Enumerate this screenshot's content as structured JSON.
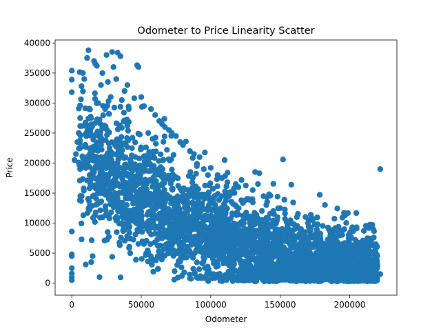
{
  "chart_data": {
    "type": "scatter",
    "title": "Odometer to Price Linearity Scatter",
    "xlabel": "Odometer",
    "ylabel": "Price",
    "xlim": [
      -12000,
      234000
    ],
    "ylim": [
      -2000,
      40500
    ],
    "xticks": [
      0,
      50000,
      100000,
      150000,
      200000
    ],
    "yticks": [
      0,
      5000,
      10000,
      15000,
      20000,
      25000,
      30000,
      35000,
      40000
    ],
    "marker_color": "#1f77b4",
    "grid": false,
    "legend": "none",
    "series": [
      {
        "points": [
          [
            0,
            500
          ],
          [
            0,
            1000
          ],
          [
            0,
            1600
          ],
          [
            0,
            2500
          ],
          [
            0,
            4500
          ],
          [
            0,
            4800
          ],
          [
            0,
            8600
          ],
          [
            0,
            31800
          ],
          [
            0,
            33900
          ],
          [
            0,
            35400
          ],
          [
            2000,
            20500
          ],
          [
            3000,
            21500
          ],
          [
            4000,
            23500
          ],
          [
            5000,
            25000
          ],
          [
            6000,
            27500
          ],
          [
            6000,
            19000
          ],
          [
            7000,
            32800
          ],
          [
            8000,
            35000
          ],
          [
            9000,
            34000
          ],
          [
            10000,
            3100
          ],
          [
            11000,
            37500
          ],
          [
            12000,
            38800
          ],
          [
            13000,
            13000
          ],
          [
            14000,
            3500
          ],
          [
            15000,
            4500
          ],
          [
            16000,
            37000
          ],
          [
            17000,
            36500
          ],
          [
            18000,
            36200
          ],
          [
            19000,
            30000
          ],
          [
            20000,
            1000
          ],
          [
            21000,
            33000
          ],
          [
            22000,
            35000
          ],
          [
            24000,
            29000
          ],
          [
            25000,
            38000
          ],
          [
            26000,
            33500
          ],
          [
            28000,
            31000
          ],
          [
            29000,
            38500
          ],
          [
            30000,
            36000
          ],
          [
            32000,
            34000
          ],
          [
            33000,
            38400
          ],
          [
            35000,
            37800
          ],
          [
            36000,
            30500
          ],
          [
            38000,
            32000
          ],
          [
            40000,
            33000
          ],
          [
            41000,
            29000
          ],
          [
            42000,
            5000
          ],
          [
            45000,
            30800
          ],
          [
            47000,
            36300
          ],
          [
            48000,
            36000
          ],
          [
            50000,
            31000
          ],
          [
            52000,
            29500
          ],
          [
            55000,
            25000
          ],
          [
            57000,
            29000
          ],
          [
            60000,
            28000
          ],
          [
            62000,
            6200
          ],
          [
            63000,
            27000
          ],
          [
            65000,
            26500
          ],
          [
            67000,
            26000
          ],
          [
            70000,
            25500
          ],
          [
            72000,
            25000
          ],
          [
            74000,
            2000
          ],
          [
            75000,
            24500
          ],
          [
            78000,
            23500
          ],
          [
            80000,
            23000
          ],
          [
            85000,
            22000
          ],
          [
            88000,
            21500
          ],
          [
            90000,
            19500
          ],
          [
            92000,
            21000
          ],
          [
            95000,
            19000
          ],
          [
            98000,
            18000
          ],
          [
            100000,
            19200
          ],
          [
            102000,
            1500
          ],
          [
            105000,
            18000
          ],
          [
            108000,
            17500
          ],
          [
            110000,
            20500
          ],
          [
            112000,
            16800
          ],
          [
            115000,
            15000
          ],
          [
            118000,
            16500
          ],
          [
            120000,
            16000
          ],
          [
            125000,
            13800
          ],
          [
            130000,
            14000
          ],
          [
            132000,
            18500
          ],
          [
            134000,
            16500
          ],
          [
            135000,
            18300
          ],
          [
            138000,
            14500
          ],
          [
            140000,
            13000
          ],
          [
            142000,
            14800
          ],
          [
            145000,
            12000
          ],
          [
            148000,
            11000
          ],
          [
            150000,
            12500
          ],
          [
            152000,
            20600
          ],
          [
            155000,
            10000
          ],
          [
            158000,
            16400
          ],
          [
            160000,
            9800
          ],
          [
            162000,
            11000
          ],
          [
            165000,
            9000
          ],
          [
            168000,
            8500
          ],
          [
            170000,
            10000
          ],
          [
            172000,
            6000
          ],
          [
            175000,
            9800
          ],
          [
            178000,
            6800
          ],
          [
            180000,
            5000
          ],
          [
            182000,
            6500
          ],
          [
            185000,
            9000
          ],
          [
            188000,
            5500
          ],
          [
            190000,
            4000
          ],
          [
            192000,
            9400
          ],
          [
            195000,
            8800
          ],
          [
            198000,
            6000
          ],
          [
            200000,
            5000
          ],
          [
            202000,
            9300
          ],
          [
            205000,
            9300
          ],
          [
            208000,
            3500
          ],
          [
            210000,
            5000
          ],
          [
            212000,
            3000
          ],
          [
            215000,
            3500
          ],
          [
            218000,
            2000
          ],
          [
            220000,
            1500
          ],
          [
            222000,
            19000
          ],
          [
            222000,
            1500
          ]
        ]
      }
    ]
  }
}
